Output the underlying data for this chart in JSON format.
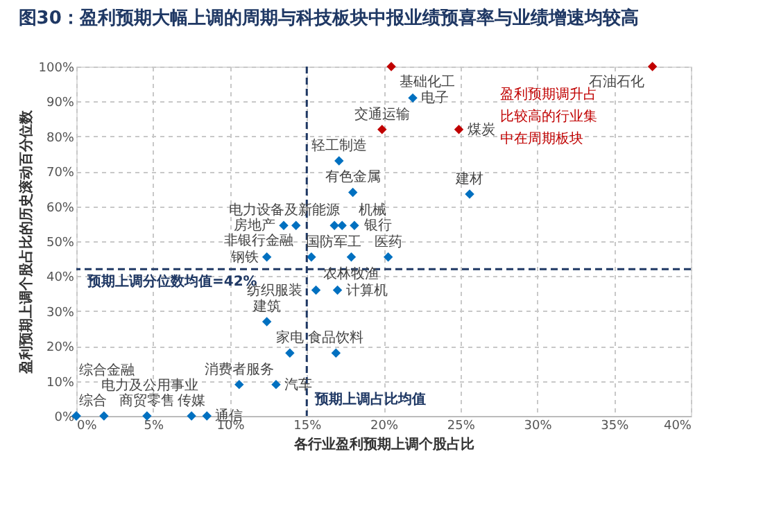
{
  "chart_data": {
    "type": "scatter",
    "title": "图30：盈利预期大幅上调的周期与科技板块中报业绩预喜率与业绩增速均较高",
    "xlabel": "各行业盈利预期上调个股占比",
    "ylabel": "盈利预期上调个股占比的历史滚动百分位数",
    "x": [
      17.1,
      18.0,
      16.8,
      17.3,
      18.1,
      13.5,
      14.3,
      15.3,
      17.9,
      20.3,
      12.4,
      15.6,
      17.0,
      12.4,
      13.9,
      16.9,
      10.6,
      13.0,
      0,
      0,
      1.8,
      4.6,
      7.5,
      8.5,
      19.9,
      20.5,
      21.9,
      24.9,
      37.5,
      25.6
    ],
    "values": [
      73,
      64,
      54.5,
      54.5,
      54.5,
      54.5,
      54.5,
      45.5,
      45.5,
      45.5,
      45.5,
      36,
      36,
      27,
      18,
      18,
      9,
      9,
      0,
      0,
      0,
      0,
      0,
      0,
      82,
      100,
      91,
      82,
      100,
      63.5
    ],
    "colors": [
      "#0070c0",
      "#0070c0",
      "#0070c0",
      "#0070c0",
      "#0070c0",
      "#0070c0",
      "#0070c0",
      "#0070c0",
      "#0070c0",
      "#0070c0",
      "#0070c0",
      "#0070c0",
      "#0070c0",
      "#0070c0",
      "#0070c0",
      "#0070c0",
      "#0070c0",
      "#0070c0",
      "#0070c0",
      "#0070c0",
      "#0070c0",
      "#0070c0",
      "#0070c0",
      "#0070c0",
      "#c00000",
      "#c00000",
      "#0070c0",
      "#c00000",
      "#c00000",
      "#0070c0"
    ],
    "marker": "diamond",
    "grid": true,
    "xlim": [
      0,
      40
    ],
    "ylim": [
      0,
      100
    ],
    "xticks": [
      {
        "value": 0,
        "label": "0%"
      },
      {
        "value": 5,
        "label": "5%"
      },
      {
        "value": 10,
        "label": "10%"
      },
      {
        "value": 15,
        "label": "15%"
      },
      {
        "value": 20,
        "label": "20%"
      },
      {
        "value": 25,
        "label": "25%"
      },
      {
        "value": 30,
        "label": "30%"
      },
      {
        "value": 35,
        "label": "35%"
      },
      {
        "value": 40,
        "label": "40%"
      }
    ],
    "yticks": [
      {
        "value": 0,
        "label": "0%"
      },
      {
        "value": 10,
        "label": "10%"
      },
      {
        "value": 20,
        "label": "20%"
      },
      {
        "value": 30,
        "label": "30%"
      },
      {
        "value": 40,
        "label": "40%"
      },
      {
        "value": 50,
        "label": "50%"
      },
      {
        "value": 60,
        "label": "60%"
      },
      {
        "value": 70,
        "label": "70%"
      },
      {
        "value": 80,
        "label": "80%"
      },
      {
        "value": 90,
        "label": "90%"
      },
      {
        "value": 100,
        "label": "100%"
      }
    ],
    "ref_lines": [
      {
        "axis": "y",
        "value": 42,
        "label": "预期上调分位数均值=42%",
        "color": "#1f3864",
        "line_style": "dashed"
      },
      {
        "axis": "x",
        "value": 15,
        "label": "预期上调占比均值",
        "color": "#1f3864",
        "line_style": "dashed"
      }
    ],
    "annotations": [
      {
        "text": "轻工制造",
        "x": 17.1,
        "y": 73
      },
      {
        "text": "有色金属",
        "x": 18.0,
        "y": 64
      },
      {
        "text": "电力设备及新能源",
        "x": 16.8,
        "y": 54.5
      },
      {
        "text": "机械",
        "x": 17.3,
        "y": 54.5
      },
      {
        "text": "银行",
        "x": 18.1,
        "y": 54.5
      },
      {
        "text": "房地产",
        "x": 13.5,
        "y": 54.5
      },
      {
        "text": "非银行金融",
        "x": 14.3,
        "y": 54.5
      },
      {
        "text": "国防军工",
        "x": 15.3,
        "y": 45.5
      },
      {
        "text": "农林牧渔",
        "x": 17.9,
        "y": 45.5
      },
      {
        "text": "医药",
        "x": 20.3,
        "y": 45.5
      },
      {
        "text": "钢铁",
        "x": 12.4,
        "y": 45.5
      },
      {
        "text": "纺织服装",
        "x": 15.6,
        "y": 36
      },
      {
        "text": "计算机",
        "x": 17.0,
        "y": 36
      },
      {
        "text": "建筑",
        "x": 12.4,
        "y": 27
      },
      {
        "text": "家电",
        "x": 13.9,
        "y": 18
      },
      {
        "text": "食品饮料",
        "x": 16.9,
        "y": 18
      },
      {
        "text": "消费者服务",
        "x": 10.6,
        "y": 9
      },
      {
        "text": "汽车",
        "x": 13.0,
        "y": 9
      },
      {
        "text": "综合金融",
        "x": 0,
        "y": 0
      },
      {
        "text": "综合",
        "x": 0,
        "y": 0
      },
      {
        "text": "电力及公用事业",
        "x": 1.8,
        "y": 0
      },
      {
        "text": "商贸零售",
        "x": 4.6,
        "y": 0
      },
      {
        "text": "传媒",
        "x": 7.5,
        "y": 0
      },
      {
        "text": "通信",
        "x": 8.5,
        "y": 0
      },
      {
        "text": "交通运输",
        "x": 19.9,
        "y": 82
      },
      {
        "text": "基础化工",
        "x": 20.5,
        "y": 100
      },
      {
        "text": "电子",
        "x": 21.9,
        "y": 91
      },
      {
        "text": "煤炭",
        "x": 24.9,
        "y": 82
      },
      {
        "text": "石油石化",
        "x": 37.5,
        "y": 100
      },
      {
        "text": "建材",
        "x": 25.6,
        "y": 63.5
      },
      "盈利预期调升占比较高的行业集中在周期板块"
    ]
  }
}
